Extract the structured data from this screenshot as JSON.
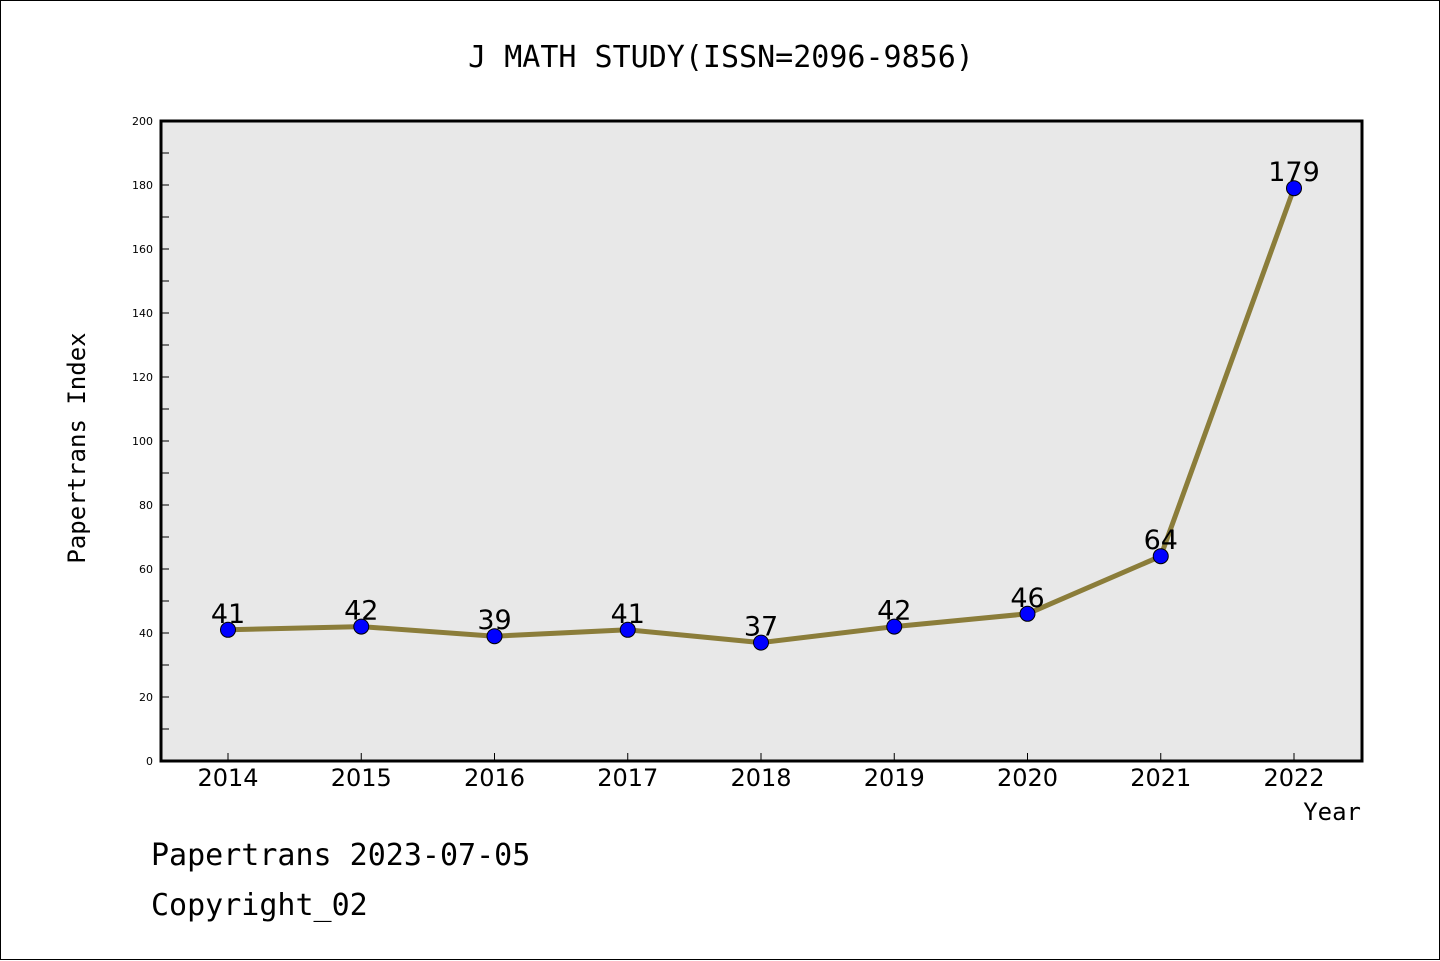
{
  "chart_data": {
    "type": "line",
    "title": "J MATH STUDY(ISSN=2096-9856)",
    "xlabel": "Year",
    "ylabel": "Papertrans Index",
    "categories": [
      "2014",
      "2015",
      "2016",
      "2017",
      "2018",
      "2019",
      "2020",
      "2021",
      "2022"
    ],
    "values": [
      41,
      42,
      39,
      41,
      37,
      42,
      46,
      64,
      179
    ],
    "data_labels": [
      "41",
      "42",
      "39",
      "41",
      "37",
      "42",
      "46",
      "64",
      "179"
    ],
    "ylim": [
      0,
      200
    ],
    "yticks": [
      0,
      20,
      40,
      60,
      80,
      100,
      120,
      140,
      160,
      180,
      200
    ],
    "grid": false,
    "legend": "none",
    "colors": {
      "line": "#8b7d3a",
      "marker": "#0000ff",
      "plot_background": "#e8e8e8"
    }
  },
  "footer": {
    "line1": "Papertrans 2023-07-05",
    "line2": "Copyright_02"
  }
}
